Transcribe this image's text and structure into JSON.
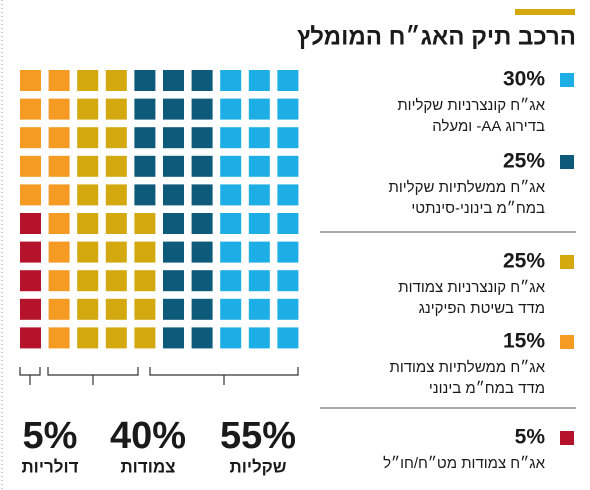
{
  "chart_data": {
    "type": "waffle",
    "title": "הרכב תיק האג״ח המומלץ",
    "series": [
      {
        "name": [
          "אג״ח קונצרניות שקליות",
          "בדירוג AA- ומעלה"
        ],
        "color": "#1eaee6",
        "values": [
          30
        ],
        "value_labels": [
          "30%"
        ]
      },
      {
        "name": [
          "אג״ח ממשלתיות שקליות",
          "במח״מ בינוני-סינתטי"
        ],
        "color": "#0e5a7a",
        "values": [
          25
        ],
        "value_labels": [
          "25%"
        ]
      },
      {
        "name": [
          "אג״ח קונצרניות צמודות",
          "מדד בשיטת הפיקינג"
        ],
        "color": "#d4a90f",
        "values": [
          25
        ],
        "value_labels": [
          "25%"
        ]
      },
      {
        "name": [
          "אג״ח ממשלתיות צמודות",
          "מדד במח״מ בינוני"
        ],
        "color": "#f59a23",
        "values": [
          15
        ],
        "value_labels": [
          "15%"
        ]
      },
      {
        "name": [
          "אג״ח צמודות מט״ח/חו״ל"
        ],
        "color": "#b5132b",
        "values": [
          5
        ],
        "value_labels": [
          "5%"
        ]
      }
    ],
    "groups": [
      {
        "name": "דולריות",
        "value": 5,
        "value_label": "5%"
      },
      {
        "name": "צמודות",
        "value": 40,
        "value_label": "40%"
      },
      {
        "name": "שקליות",
        "value": 55,
        "value_label": "55%"
      }
    ]
  }
}
